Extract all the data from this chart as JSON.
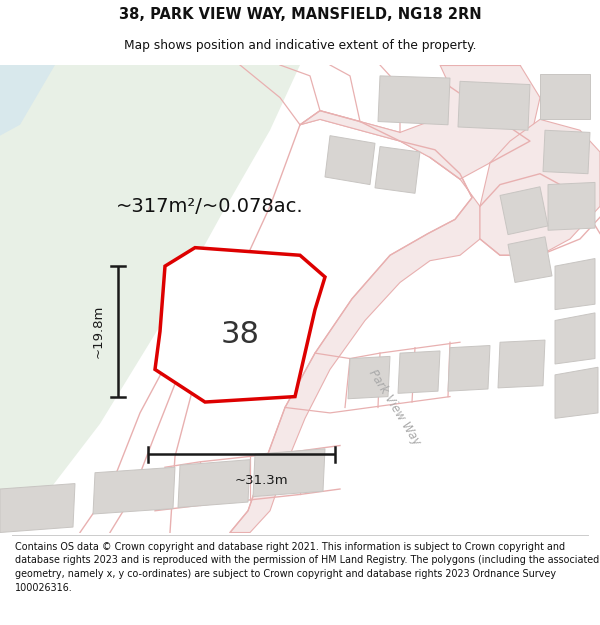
{
  "title_line1": "38, PARK VIEW WAY, MANSFIELD, NG18 2RN",
  "title_line2": "Map shows position and indicative extent of the property.",
  "area_text": "~317m²/~0.078ac.",
  "label_38": "38",
  "dim_height": "~19.8m",
  "dim_width": "~31.3m",
  "street_label": "Park View Way",
  "footer_text": "Contains OS data © Crown copyright and database right 2021. This information is subject to Crown copyright and database rights 2023 and is reproduced with the permission of HM Land Registry. The polygons (including the associated geometry, namely x, y co-ordinates) are subject to Crown copyright and database rights 2023 Ordnance Survey 100026316.",
  "map_bg": "#f7f5f2",
  "green_color": "#e8f0e6",
  "blue_tint": "#d8e8ec",
  "road_line_color": "#e8b0b0",
  "road_fill_color": "#f5e8e8",
  "building_fill": "#d8d5d2",
  "building_edge": "#c8c5c2",
  "plot_red": "#dd0000",
  "plot_fill": "#ffffff",
  "dim_color": "#1a1a1a",
  "text_dark": "#111111",
  "text_street": "#aaaaaa",
  "white": "#ffffff"
}
